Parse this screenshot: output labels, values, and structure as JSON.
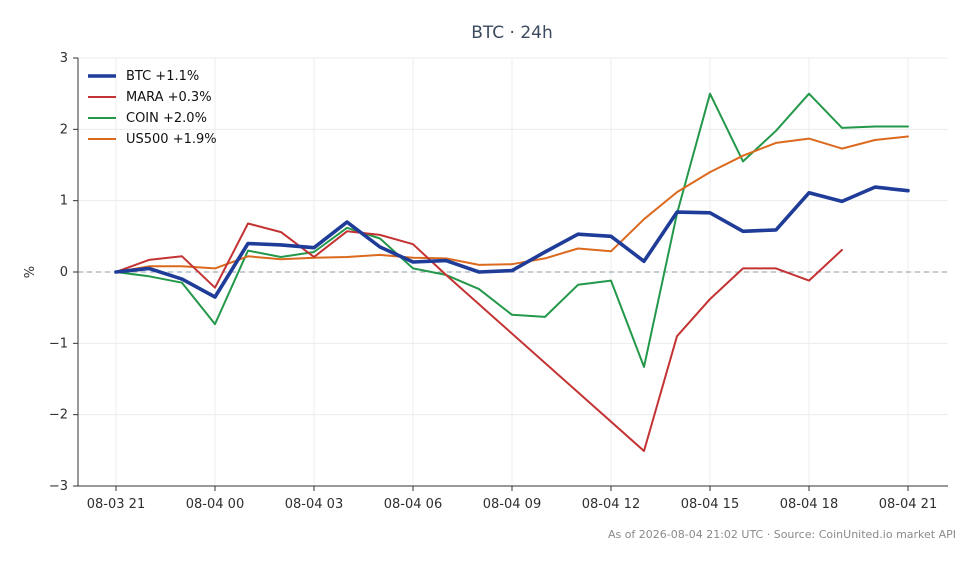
{
  "chart_data": {
    "type": "line",
    "title": "BTC · 24h",
    "xlabel": "",
    "ylabel": "%",
    "ylim": [
      -3,
      3
    ],
    "yticks": [
      3,
      2,
      1,
      0,
      -1,
      -2,
      -3
    ],
    "ytick_labels": [
      "3",
      "2",
      "1",
      "0",
      "−1",
      "−2",
      "−3"
    ],
    "x": [
      "08-03 21",
      "08-03 22",
      "08-03 23",
      "08-04 00",
      "08-04 01",
      "08-04 02",
      "08-04 03",
      "08-04 04",
      "08-04 05",
      "08-04 06",
      "08-04 07",
      "08-04 08",
      "08-04 09",
      "08-04 10",
      "08-04 11",
      "08-04 12",
      "08-04 13",
      "08-04 14",
      "08-04 15",
      "08-04 16",
      "08-04 17",
      "08-04 18",
      "08-04 19",
      "08-04 20",
      "08-04 21"
    ],
    "xticks": [
      "08-03 21",
      "08-04 00",
      "08-04 03",
      "08-04 06",
      "08-04 09",
      "08-04 12",
      "08-04 15",
      "08-04 18",
      "08-04 21"
    ],
    "grid": true,
    "zero_line": true,
    "legend_placement": "top-left",
    "series": [
      {
        "name": "BTC +1.1%",
        "color": "#1f3c98",
        "values": [
          0.0,
          0.05,
          -0.1,
          -0.35,
          0.4,
          0.38,
          0.34,
          0.7,
          0.35,
          0.14,
          0.16,
          0.0,
          0.02,
          0.28,
          0.53,
          0.5,
          0.15,
          0.84,
          0.83,
          0.57,
          0.59,
          1.11,
          0.99,
          1.19,
          1.14
        ]
      },
      {
        "name": "MARA +0.3%",
        "color": "#c43333",
        "values": [
          0.0,
          0.17,
          0.22,
          -0.22,
          0.68,
          0.56,
          0.21,
          0.57,
          0.52,
          0.39,
          -0.04,
          null,
          null,
          null,
          null,
          null,
          -2.51,
          -0.9,
          -0.38,
          0.05,
          0.05,
          -0.12,
          0.31,
          null,
          null
        ]
      },
      {
        "name": "COIN +2.0%",
        "color": "#24984a",
        "values": [
          0.0,
          -0.06,
          -0.15,
          -0.73,
          0.3,
          0.21,
          0.28,
          0.62,
          0.47,
          0.05,
          -0.04,
          -0.24,
          -0.6,
          -0.63,
          -0.18,
          -0.12,
          -1.33,
          0.82,
          2.5,
          1.55,
          1.98,
          2.5,
          2.02,
          2.04,
          2.04
        ]
      },
      {
        "name": "US500 +1.9%",
        "color": "#db6a1f",
        "values": [
          0.0,
          0.08,
          0.08,
          0.05,
          0.22,
          0.18,
          0.2,
          0.21,
          0.24,
          0.2,
          0.19,
          0.1,
          0.11,
          0.19,
          0.33,
          0.29,
          0.74,
          1.12,
          1.4,
          1.63,
          1.81,
          1.87,
          1.73,
          1.85,
          1.9
        ]
      }
    ],
    "footer": "As of 2026-08-04 21:02 UTC · Source: CoinUnited.io market API"
  }
}
